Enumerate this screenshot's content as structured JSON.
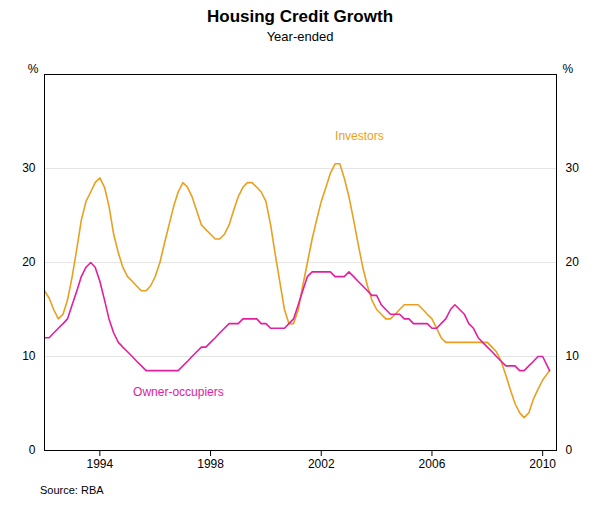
{
  "chart_data": {
    "type": "line",
    "title": "Housing Credit Growth",
    "subtitle": "Year-ended",
    "ylabel": "%",
    "y2label": "%",
    "source": "Source: RBA",
    "xlim": [
      1992.0,
      2010.5
    ],
    "xticks": [
      1994,
      1998,
      2002,
      2006,
      2010
    ],
    "ylim": [
      0,
      40
    ],
    "yticks": [
      0,
      10,
      20,
      30
    ],
    "y2lim": [
      0,
      40
    ],
    "y2ticks": [
      0,
      10,
      20,
      30
    ],
    "grid": "y",
    "x": [
      1992.0,
      1992.17,
      1992.33,
      1992.5,
      1992.67,
      1992.83,
      1993.0,
      1993.17,
      1993.33,
      1993.5,
      1993.67,
      1993.83,
      1994.0,
      1994.17,
      1994.33,
      1994.5,
      1994.67,
      1994.83,
      1995.0,
      1995.17,
      1995.33,
      1995.5,
      1995.67,
      1995.83,
      1996.0,
      1996.17,
      1996.33,
      1996.5,
      1996.67,
      1996.83,
      1997.0,
      1997.17,
      1997.33,
      1997.5,
      1997.67,
      1997.83,
      1998.0,
      1998.17,
      1998.33,
      1998.5,
      1998.67,
      1998.83,
      1999.0,
      1999.17,
      1999.33,
      1999.5,
      1999.67,
      1999.83,
      2000.0,
      2000.17,
      2000.33,
      2000.5,
      2000.67,
      2000.83,
      2001.0,
      2001.17,
      2001.33,
      2001.5,
      2001.67,
      2001.83,
      2002.0,
      2002.17,
      2002.33,
      2002.5,
      2002.67,
      2002.83,
      2003.0,
      2003.17,
      2003.33,
      2003.5,
      2003.67,
      2003.83,
      2004.0,
      2004.17,
      2004.33,
      2004.5,
      2004.67,
      2004.83,
      2005.0,
      2005.17,
      2005.33,
      2005.5,
      2005.67,
      2005.83,
      2006.0,
      2006.17,
      2006.33,
      2006.5,
      2006.67,
      2006.83,
      2007.0,
      2007.17,
      2007.33,
      2007.5,
      2007.67,
      2007.83,
      2008.0,
      2008.17,
      2008.33,
      2008.5,
      2008.67,
      2008.83,
      2009.0,
      2009.17,
      2009.33,
      2009.5,
      2009.67,
      2009.83,
      2010.0,
      2010.25
    ],
    "series": [
      {
        "name": "Investors",
        "color": "#E8A020",
        "label_x": 2002.5,
        "label_y": 33.0,
        "values": [
          17.0,
          16.2,
          15.0,
          14.0,
          14.5,
          16.0,
          18.5,
          21.5,
          24.5,
          26.5,
          27.5,
          28.5,
          29.0,
          28.0,
          26.0,
          23.0,
          21.0,
          19.5,
          18.5,
          18.0,
          17.5,
          17.0,
          17.0,
          17.5,
          18.5,
          20.0,
          22.0,
          24.0,
          26.0,
          27.5,
          28.5,
          28.0,
          27.0,
          25.5,
          24.0,
          23.5,
          23.0,
          22.5,
          22.5,
          23.0,
          24.0,
          25.5,
          27.0,
          28.0,
          28.5,
          28.5,
          28.0,
          27.5,
          26.5,
          24.0,
          21.0,
          18.0,
          15.0,
          13.5,
          13.5,
          15.0,
          17.5,
          20.0,
          22.5,
          24.5,
          26.5,
          28.0,
          29.5,
          30.5,
          30.5,
          29.0,
          27.0,
          24.5,
          22.0,
          19.5,
          17.5,
          16.0,
          15.0,
          14.5,
          14.0,
          14.0,
          14.5,
          15.0,
          15.5,
          15.5,
          15.5,
          15.5,
          15.0,
          14.5,
          14.0,
          13.0,
          12.0,
          11.5,
          11.5,
          11.5,
          11.5,
          11.5,
          11.5,
          11.5,
          11.5,
          11.5,
          11.5,
          11.0,
          10.5,
          9.5,
          8.0,
          6.5,
          5.0,
          4.0,
          3.5,
          4.0,
          5.5,
          6.5,
          7.5,
          8.5
        ]
      },
      {
        "name": "Owner-occupiers",
        "color": "#E020A0",
        "label_x": 1995.2,
        "label_y": 5.8,
        "values": [
          12.0,
          12.0,
          12.5,
          13.0,
          13.5,
          14.0,
          15.5,
          17.0,
          18.5,
          19.5,
          20.0,
          19.5,
          18.0,
          16.0,
          14.0,
          12.5,
          11.5,
          11.0,
          10.5,
          10.0,
          9.5,
          9.0,
          8.5,
          8.5,
          8.5,
          8.5,
          8.5,
          8.5,
          8.5,
          8.5,
          9.0,
          9.5,
          10.0,
          10.5,
          11.0,
          11.0,
          11.5,
          12.0,
          12.5,
          13.0,
          13.5,
          13.5,
          13.5,
          14.0,
          14.0,
          14.0,
          14.0,
          13.5,
          13.5,
          13.0,
          13.0,
          13.0,
          13.0,
          13.5,
          14.0,
          15.5,
          17.0,
          18.5,
          19.0,
          19.0,
          19.0,
          19.0,
          19.0,
          18.5,
          18.5,
          18.5,
          19.0,
          18.5,
          18.0,
          17.5,
          17.0,
          16.5,
          16.5,
          15.5,
          15.0,
          14.5,
          14.5,
          14.5,
          14.0,
          14.0,
          13.5,
          13.5,
          13.5,
          13.5,
          13.0,
          13.0,
          13.5,
          14.0,
          15.0,
          15.5,
          15.0,
          14.5,
          13.5,
          13.0,
          12.0,
          11.5,
          11.0,
          10.5,
          10.0,
          9.5,
          9.0,
          9.0,
          9.0,
          8.5,
          8.5,
          9.0,
          9.5,
          10.0,
          10.0,
          8.5
        ]
      }
    ]
  }
}
